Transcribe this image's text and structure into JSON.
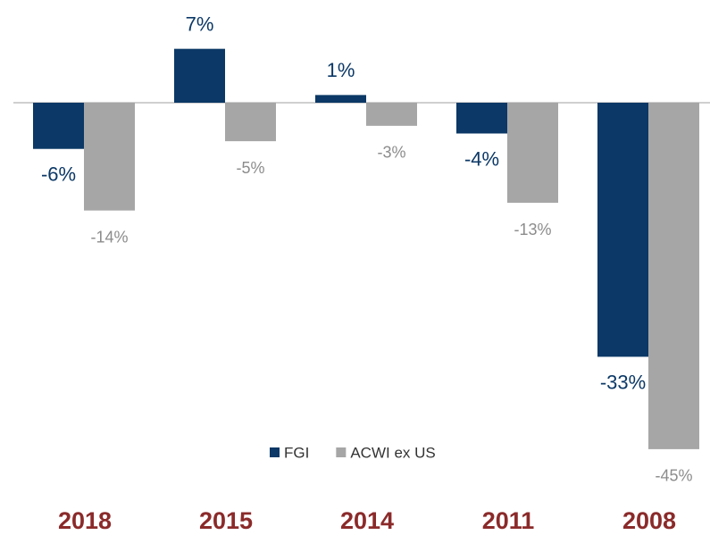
{
  "chart_data": {
    "type": "bar",
    "categories": [
      "2018",
      "2015",
      "2014",
      "2011",
      "2008"
    ],
    "series": [
      {
        "name": "FGI",
        "color": "#0b3866",
        "values": [
          -6,
          7,
          1,
          -4,
          -33
        ],
        "value_labels": [
          "-6%",
          "7%",
          "1%",
          "-4%",
          "-33%"
        ]
      },
      {
        "name": "ACWI ex US",
        "color": "#a6a6a6",
        "values": [
          -14,
          -5,
          -3,
          -13,
          -45
        ],
        "value_labels": [
          "-14%",
          "-5%",
          "-3%",
          "-13%",
          "-45%"
        ]
      }
    ],
    "category_color": "#8b2a2a",
    "legend": "bottom"
  }
}
